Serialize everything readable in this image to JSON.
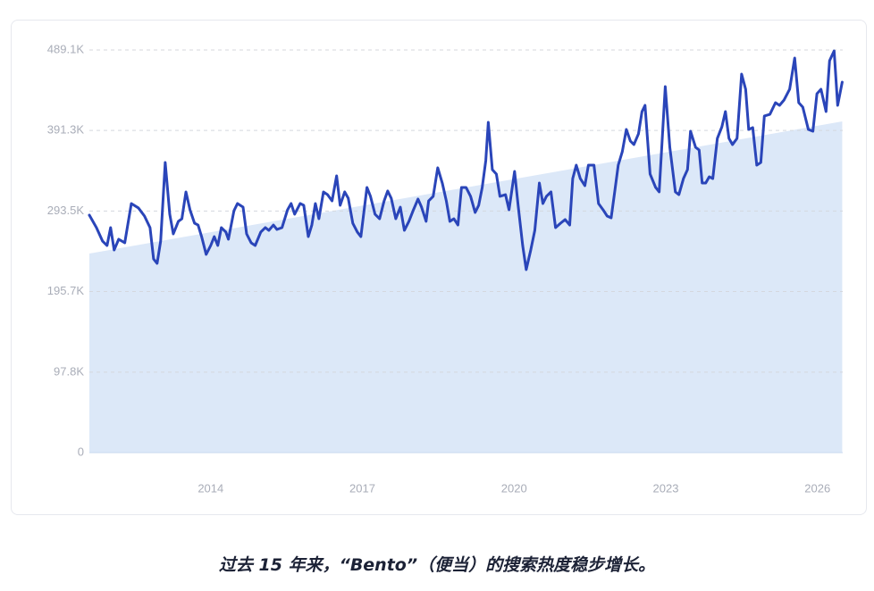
{
  "chart_data": {
    "type": "line",
    "caption": "过去 15 年来，“Bento”（便当）的搜索热度稳步增长。",
    "xlim": [
      2011.6,
      2026.5
    ],
    "xticks": [
      2014,
      2017,
      2020,
      2023,
      2026
    ],
    "ylim": [
      0,
      489100
    ],
    "yticks": [
      0,
      {
        "value": 97800,
        "label": "97.8K"
      },
      {
        "value": 195700,
        "label": "195.7K"
      },
      {
        "value": 293500,
        "label": "293.5K"
      },
      {
        "value": 391300,
        "label": "391.3K"
      },
      {
        "value": 489100,
        "label": "489.1K"
      }
    ],
    "grid": true,
    "trend": {
      "x": [
        2011.6,
        2026.49
      ],
      "values": [
        241800,
        402300
      ],
      "color": "#dce8f8"
    },
    "x": [
      2011.6,
      2011.74,
      2011.86,
      2011.95,
      2012.02,
      2012.09,
      2012.18,
      2012.3,
      2012.43,
      2012.57,
      2012.69,
      2012.8,
      2012.87,
      2012.94,
      2013.01,
      2013.1,
      2013.19,
      2013.26,
      2013.36,
      2013.43,
      2013.51,
      2013.59,
      2013.68,
      2013.75,
      2013.82,
      2013.91,
      2014.0,
      2014.07,
      2014.14,
      2014.21,
      2014.3,
      2014.35,
      2014.46,
      2014.53,
      2014.64,
      2014.71,
      2014.8,
      2014.88,
      2014.99,
      2015.08,
      2015.15,
      2015.24,
      2015.31,
      2015.41,
      2015.52,
      2015.59,
      2015.66,
      2015.77,
      2015.84,
      2015.93,
      2016.0,
      2016.07,
      2016.14,
      2016.23,
      2016.31,
      2016.4,
      2016.49,
      2016.56,
      2016.65,
      2016.72,
      2016.81,
      2016.9,
      2016.97,
      2017.02,
      2017.09,
      2017.16,
      2017.25,
      2017.34,
      2017.43,
      2017.5,
      2017.57,
      2017.66,
      2017.75,
      2017.83,
      2017.92,
      2018.01,
      2018.1,
      2018.17,
      2018.26,
      2018.31,
      2018.4,
      2018.49,
      2018.58,
      2018.66,
      2018.73,
      2018.81,
      2018.89,
      2018.96,
      2019.05,
      2019.14,
      2019.23,
      2019.3,
      2019.37,
      2019.44,
      2019.49,
      2019.57,
      2019.65,
      2019.72,
      2019.83,
      2019.9,
      2020.01,
      2020.08,
      2020.17,
      2020.24,
      2020.33,
      2020.41,
      2020.5,
      2020.57,
      2020.64,
      2020.73,
      2020.82,
      2020.92,
      2021.01,
      2021.1,
      2021.16,
      2021.23,
      2021.31,
      2021.4,
      2021.47,
      2021.58,
      2021.67,
      2021.76,
      2021.84,
      2021.92,
      2021.99,
      2022.06,
      2022.14,
      2022.22,
      2022.3,
      2022.37,
      2022.46,
      2022.53,
      2022.59,
      2022.69,
      2022.8,
      2022.87,
      2022.99,
      2023.08,
      2023.19,
      2023.26,
      2023.35,
      2023.43,
      2023.49,
      2023.59,
      2023.66,
      2023.72,
      2023.79,
      2023.86,
      2023.93,
      2024.02,
      2024.11,
      2024.18,
      2024.25,
      2024.32,
      2024.41,
      2024.5,
      2024.58,
      2024.64,
      2024.72,
      2024.8,
      2024.88,
      2024.95,
      2025.06,
      2025.17,
      2025.25,
      2025.34,
      2025.45,
      2025.55,
      2025.63,
      2025.71,
      2025.82,
      2025.91,
      2025.99,
      2026.07,
      2026.17,
      2026.24,
      2026.33,
      2026.4,
      2026.49
    ],
    "series": [
      {
        "color": "#2a45b9",
        "values": [
          288500,
          273300,
          257000,
          251600,
          273300,
          246200,
          259200,
          254900,
          302600,
          297200,
          287400,
          273300,
          235300,
          229900,
          257000,
          352500,
          289600,
          265700,
          280900,
          284100,
          316700,
          295000,
          278700,
          276500,
          262400,
          240800,
          251600,
          262400,
          251600,
          273300,
          267900,
          259200,
          293900,
          302600,
          298200,
          265700,
          254900,
          251600,
          267900,
          273300,
          270000,
          276500,
          271100,
          273300,
          295000,
          302600,
          289600,
          302600,
          300400,
          262400,
          276500,
          302600,
          284100,
          316700,
          313400,
          305800,
          336200,
          300400,
          316700,
          309100,
          278700,
          267900,
          262400,
          287400,
          322100,
          311300,
          289600,
          284100,
          305800,
          317800,
          309100,
          284100,
          298200,
          270000,
          280900,
          295000,
          308000,
          298200,
          280900,
          305800,
          311300,
          346000,
          327500,
          305800,
          280900,
          284100,
          276500,
          322100,
          322100,
          311300,
          291700,
          300400,
          322100,
          354600,
          401300,
          343800,
          338400,
          311300,
          313400,
          295000,
          341600,
          300400,
          251600,
          222300,
          246200,
          270000,
          327500,
          302600,
          311300,
          316700,
          273300,
          278700,
          283100,
          276500,
          332900,
          349200,
          332900,
          324300,
          349200,
          349200,
          302600,
          295000,
          287400,
          285200,
          316700,
          349200,
          365500,
          392600,
          378500,
          374200,
          387200,
          414300,
          421900,
          338400,
          322100,
          316700,
          444600,
          370900,
          316700,
          313400,
          332900,
          343800,
          390400,
          370900,
          367600,
          327500,
          327500,
          335100,
          332900,
          381700,
          395800,
          414300,
          381700,
          374200,
          381700,
          459800,
          441400,
          392600,
          394800,
          349200,
          352500,
          408900,
          411000,
          425100,
          421900,
          428400,
          441400,
          479300,
          425100,
          419700,
          392600,
          390400,
          436000,
          441400,
          414300,
          476100,
          488000,
          421900,
          450100
        ]
      }
    ]
  }
}
